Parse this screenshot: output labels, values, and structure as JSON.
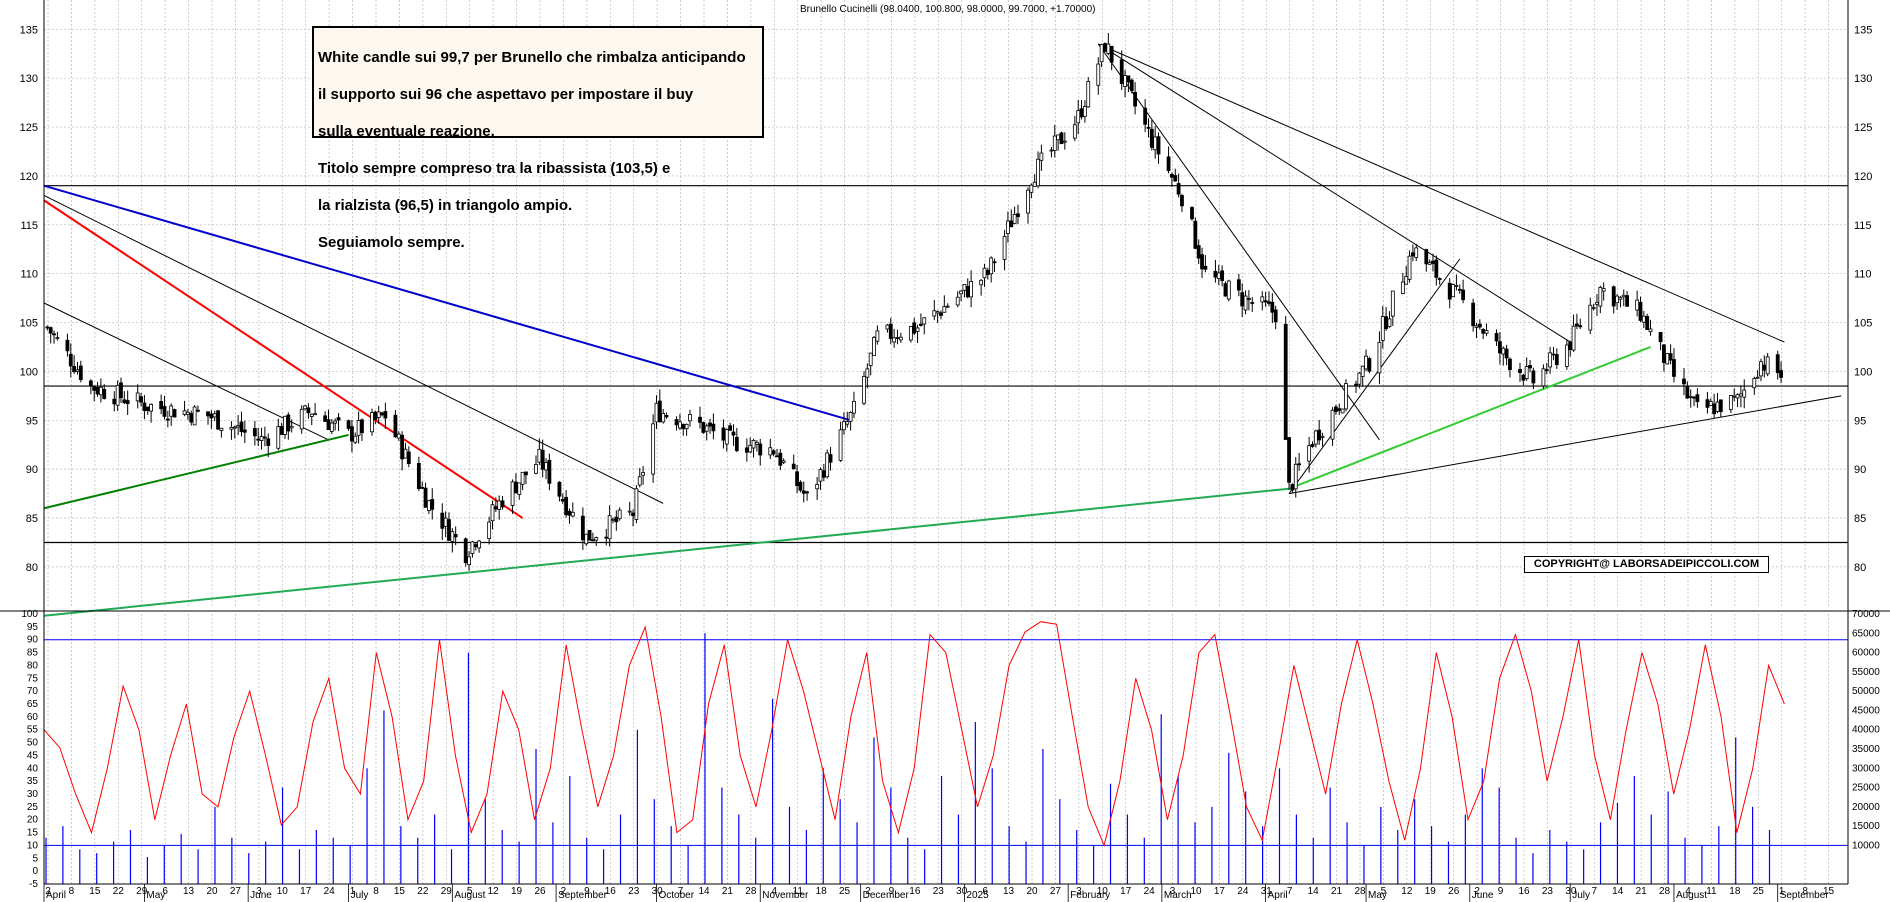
{
  "header": {
    "title": "Brunello Cucinelli (98.0400, 100.800, 98.0000, 99.7000, +1.70000)"
  },
  "annotation": {
    "lines": [
      "White candle sui 99,7 per Brunello che rimbalza anticipando",
      "il supporto sui 96 che aspettavo per impostare il buy",
      "sulla eventuale reazione.",
      "Titolo sempre compreso tra la ribassista (103,5) e",
      "la rialzista (96,5) in triangolo ampio.",
      "Seguiamolo sempre."
    ]
  },
  "copyright": "COPYRIGHT@ LABORSADEIPICCOLI.COM",
  "chart_data": [
    {
      "type": "candlestick",
      "title": "Brunello Cucinelli (98.0400, 100.800, 98.0000, 99.7000, +1.70000)",
      "ylim": [
        76,
        138
      ],
      "y_ticks": [
        80,
        85,
        90,
        95,
        100,
        105,
        110,
        115,
        120,
        125,
        130,
        135
      ],
      "last_bar": {
        "open": 98.04,
        "high": 100.8,
        "low": 98.0,
        "close": 99.7,
        "change": 1.7
      },
      "close_path": [
        {
          "date": "2024-04-02",
          "close": 104.5
        },
        {
          "date": "2024-04-15",
          "close": 98.5
        },
        {
          "date": "2024-05-02",
          "close": 96.5
        },
        {
          "date": "2024-05-20",
          "close": 95.5
        },
        {
          "date": "2024-06-05",
          "close": 93.0
        },
        {
          "date": "2024-06-20",
          "close": 96.0
        },
        {
          "date": "2024-07-01",
          "close": 93.5
        },
        {
          "date": "2024-07-12",
          "close": 95.5
        },
        {
          "date": "2024-07-25",
          "close": 86.5
        },
        {
          "date": "2024-08-05",
          "close": 81.5
        },
        {
          "date": "2024-08-16",
          "close": 87.0
        },
        {
          "date": "2024-08-27",
          "close": 91.0
        },
        {
          "date": "2024-09-10",
          "close": 83.0
        },
        {
          "date": "2024-09-24",
          "close": 85.5
        },
        {
          "date": "2024-10-01",
          "close": 96.0
        },
        {
          "date": "2024-10-14",
          "close": 94.5
        },
        {
          "date": "2024-10-22",
          "close": 93.0
        },
        {
          "date": "2024-11-05",
          "close": 92.0
        },
        {
          "date": "2024-11-15",
          "close": 87.0
        },
        {
          "date": "2024-11-29",
          "close": 96.0
        },
        {
          "date": "2024-12-06",
          "close": 103.5
        },
        {
          "date": "2024-12-18",
          "close": 104.5
        },
        {
          "date": "2025-01-08",
          "close": 110.0
        },
        {
          "date": "2025-01-21",
          "close": 120.0
        },
        {
          "date": "2025-02-04",
          "close": 126.0
        },
        {
          "date": "2025-02-12",
          "close": 133.5
        },
        {
          "date": "2025-02-24",
          "close": 125.0
        },
        {
          "date": "2025-03-07",
          "close": 118.0
        },
        {
          "date": "2025-03-14",
          "close": 110.0
        },
        {
          "date": "2025-03-25",
          "close": 107.5
        },
        {
          "date": "2025-04-04",
          "close": 106.0
        },
        {
          "date": "2025-04-08",
          "close": 88.0
        },
        {
          "date": "2025-04-15",
          "close": 93.0
        },
        {
          "date": "2025-05-02",
          "close": 101.0
        },
        {
          "date": "2025-05-15",
          "close": 112.5
        },
        {
          "date": "2025-05-30",
          "close": 107.0
        },
        {
          "date": "2025-06-10",
          "close": 102.0
        },
        {
          "date": "2025-06-20",
          "close": 99.0
        },
        {
          "date": "2025-07-01",
          "close": 103.0
        },
        {
          "date": "2025-07-10",
          "close": 108.5
        },
        {
          "date": "2025-07-22",
          "close": 106.0
        },
        {
          "date": "2025-08-01",
          "close": 99.5
        },
        {
          "date": "2025-08-08",
          "close": 96.0
        },
        {
          "date": "2025-08-20",
          "close": 97.0
        },
        {
          "date": "2025-08-27",
          "close": 101.0
        },
        {
          "date": "2025-09-02",
          "close": 99.7
        }
      ],
      "horizontal_levels": [
        119.0,
        98.5,
        82.5
      ],
      "trendlines": [
        {
          "color": "#0000cc",
          "from": [
            "2024-04-01",
            119.0
          ],
          "to": [
            "2024-11-28",
            95.0
          ]
        },
        {
          "color": "#ff0000",
          "from": [
            "2024-04-01",
            117.5
          ],
          "to": [
            "2024-08-22",
            85.0
          ]
        },
        {
          "color": "#000000",
          "from": [
            "2024-04-01",
            118.0
          ],
          "to": [
            "2024-10-03",
            86.5
          ]
        },
        {
          "color": "#000000",
          "from": [
            "2024-04-01",
            107.0
          ],
          "to": [
            "2024-06-25",
            93.0
          ]
        },
        {
          "color": "#008000",
          "from": [
            "2024-04-01",
            86.0
          ],
          "to": [
            "2024-07-01",
            93.5
          ]
        },
        {
          "color": "#22aa55",
          "from": [
            "2024-04-01",
            75.0
          ],
          "to": [
            "2025-04-08",
            88.0
          ]
        },
        {
          "color": "#33cc33",
          "from": [
            "2025-04-08",
            88.0
          ],
          "to": [
            "2025-07-25",
            102.5
          ]
        },
        {
          "color": "#000000",
          "from": [
            "2025-04-08",
            87.5
          ],
          "to": [
            "2025-09-20",
            97.5
          ]
        },
        {
          "color": "#000000",
          "from": [
            "2025-02-10",
            133.5
          ],
          "to": [
            "2025-09-03",
            103.0
          ]
        },
        {
          "color": "#000000",
          "from": [
            "2025-02-10",
            133.5
          ],
          "to": [
            "2025-07-01",
            103.0
          ]
        },
        {
          "color": "#000000",
          "from": [
            "2025-02-10",
            133.5
          ],
          "to": [
            "2025-05-05",
            93.0
          ]
        },
        {
          "color": "#000000",
          "from": [
            "2025-04-08",
            87.5
          ],
          "to": [
            "2025-05-29",
            111.5
          ]
        }
      ]
    },
    {
      "type": "line",
      "name": "oscillator",
      "ylim": [
        -5,
        100
      ],
      "y_ticks": [
        -5,
        0,
        5,
        10,
        15,
        20,
        25,
        30,
        35,
        40,
        45,
        50,
        55,
        60,
        65,
        70,
        75,
        80,
        85,
        90,
        95,
        100
      ],
      "reference_levels": [
        90,
        10
      ],
      "values": [
        55,
        48,
        30,
        15,
        40,
        72,
        55,
        20,
        45,
        65,
        30,
        25,
        52,
        70,
        45,
        18,
        25,
        58,
        75,
        40,
        30,
        85,
        60,
        20,
        35,
        90,
        45,
        15,
        30,
        70,
        55,
        20,
        40,
        88,
        55,
        25,
        45,
        80,
        95,
        60,
        15,
        20,
        65,
        88,
        45,
        25,
        55,
        90,
        70,
        45,
        20,
        60,
        85,
        35,
        15,
        40,
        92,
        85,
        55,
        25,
        45,
        80,
        93,
        97,
        96,
        60,
        25,
        10,
        35,
        75,
        55,
        20,
        45,
        85,
        92,
        60,
        25,
        12,
        45,
        80,
        55,
        30,
        65,
        90,
        65,
        35,
        12,
        40,
        85,
        60,
        20,
        35,
        75,
        92,
        70,
        35,
        60,
        90,
        45,
        20,
        55,
        85,
        65,
        30,
        55,
        88,
        60,
        15,
        40,
        80,
        65
      ]
    },
    {
      "type": "bar",
      "name": "volume",
      "ylim": [
        0,
        70000
      ],
      "y_ticks": [
        10000,
        15000,
        20000,
        25000,
        30000,
        35000,
        40000,
        45000,
        50000,
        55000,
        60000,
        65000,
        70000
      ],
      "values": [
        12000,
        15000,
        9000,
        8000,
        11000,
        14000,
        7000,
        10000,
        13000,
        9000,
        20000,
        12000,
        8000,
        11000,
        25000,
        9000,
        14000,
        12000,
        10000,
        30000,
        45000,
        15000,
        12000,
        18000,
        9000,
        60000,
        22000,
        14000,
        11000,
        35000,
        16000,
        28000,
        12000,
        9000,
        18000,
        40000,
        22000,
        15000,
        10000,
        65000,
        25000,
        18000,
        12000,
        48000,
        20000,
        14000,
        30000,
        22000,
        16000,
        38000,
        25000,
        12000,
        9000,
        28000,
        18000,
        42000,
        30000,
        15000,
        11000,
        35000,
        22000,
        14000,
        10000,
        26000,
        18000,
        12000,
        44000,
        28000,
        16000,
        20000,
        34000,
        24000,
        15000,
        30000,
        18000,
        12000,
        25000,
        16000,
        10000,
        20000,
        14000,
        22000,
        15000,
        11000,
        18000,
        30000,
        25000,
        12000,
        8000,
        14000,
        11000,
        9000,
        16000,
        21000,
        28000,
        18000,
        24000,
        12000,
        10000,
        15000,
        38000,
        20000,
        14000
      ]
    }
  ],
  "x_axis": {
    "day_labels": [
      "2",
      "8",
      "15",
      "22",
      "29",
      "6",
      "13",
      "20",
      "27",
      "3",
      "10",
      "17",
      "24",
      "1",
      "8",
      "15",
      "22",
      "29",
      "5",
      "12",
      "19",
      "26",
      "2",
      "9",
      "16",
      "23",
      "30",
      "7",
      "14",
      "21",
      "28",
      "4",
      "11",
      "18",
      "25",
      "2",
      "9",
      "16",
      "23",
      "30",
      "6",
      "13",
      "20",
      "27",
      "3",
      "10",
      "17",
      "24",
      "3",
      "10",
      "17",
      "24",
      "31",
      "7",
      "14",
      "21",
      "28",
      "5",
      "12",
      "19",
      "26",
      "2",
      "9",
      "16",
      "23",
      "30",
      "7",
      "14",
      "21",
      "28",
      "4",
      "11",
      "18",
      "25",
      "1",
      "8",
      "15"
    ],
    "months": [
      "April",
      "May",
      "June",
      "July",
      "August",
      "September",
      "October",
      "November",
      "December",
      "2025",
      "February",
      "March",
      "April",
      "May",
      "June",
      "July",
      "August",
      "September"
    ]
  },
  "colors": {
    "bull_candle": "#ffffff",
    "bear_candle": "#000000",
    "oscillator": "#ff0000",
    "volume": "#0000ff",
    "reference": "#0000ff"
  }
}
